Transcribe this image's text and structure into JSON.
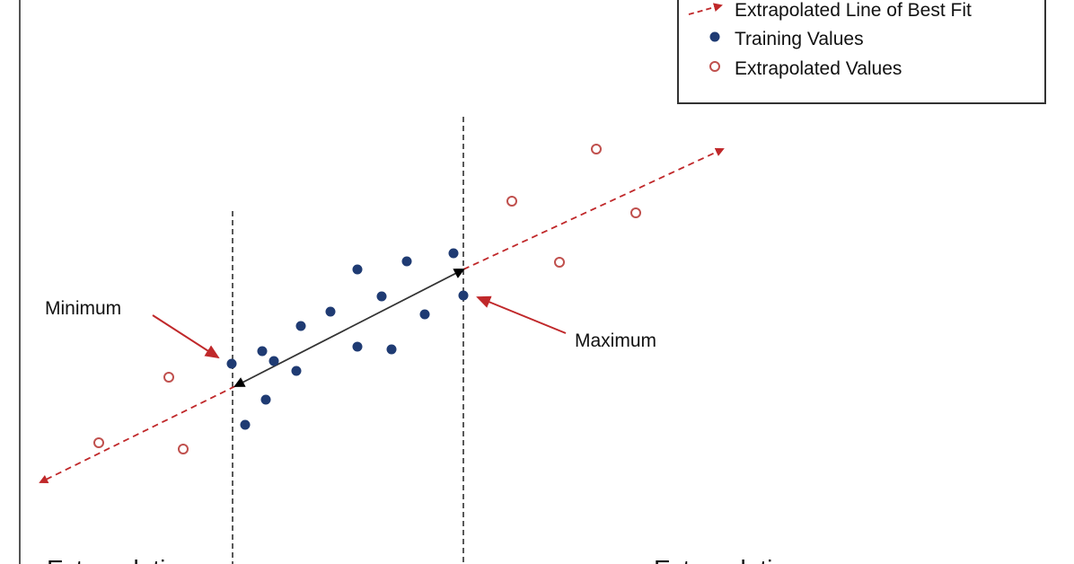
{
  "legend": {
    "items": [
      "Extrapolated Line of Best Fit",
      "Training Values",
      "Extrapolated Values"
    ]
  },
  "annotations": {
    "minimum": "Minimum",
    "maximum": "Maximum"
  },
  "regions": [
    "Extrapolation",
    "Extrapolation"
  ]
}
